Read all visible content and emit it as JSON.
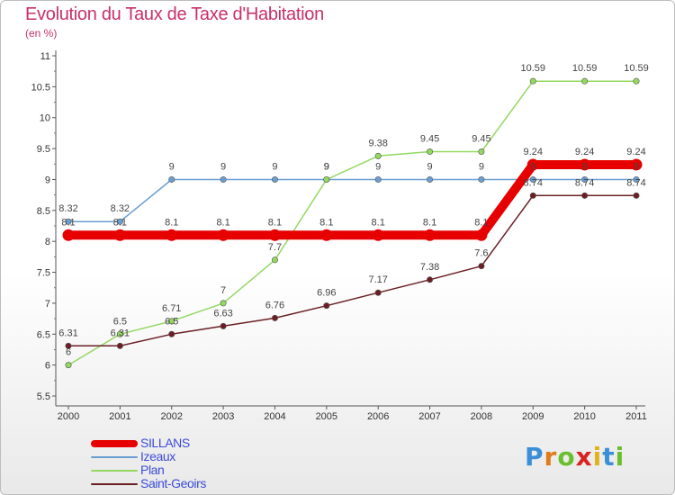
{
  "title": "Evolution du Taux de Taxe d'Habitation",
  "subtitle": "(en %)",
  "brand": {
    "letters": [
      "P",
      "r",
      "o",
      "x",
      "i",
      "t",
      "i"
    ],
    "colors": [
      "#3a8fd8",
      "#e07b1a",
      "#6bbf2e",
      "#d8231f",
      "#e0b31a",
      "#3a8fd8",
      "#6bbf2e"
    ]
  },
  "chart_data": {
    "type": "line",
    "title": "Evolution du Taux de Taxe d'Habitation",
    "ylabel": "(en %)",
    "xlabel": "",
    "x": [
      "2000",
      "2001",
      "2002",
      "2003",
      "2004",
      "2005",
      "2006",
      "2007",
      "2008",
      "2009",
      "2010",
      "2011"
    ],
    "ylim": [
      5.5,
      11
    ],
    "yticks": [
      "5.5",
      "6",
      "6.5",
      "7",
      "7.5",
      "8",
      "8.5",
      "9",
      "9.5",
      "10",
      "10.5",
      "11"
    ],
    "grid": false,
    "legend_position": "bottom-left",
    "series": [
      {
        "name": "SILLANS",
        "color": "#e60000",
        "emphasis": "thick",
        "values": [
          8.1,
          8.1,
          8.1,
          8.1,
          8.1,
          8.1,
          8.1,
          8.1,
          8.1,
          9.24,
          9.24,
          9.24
        ],
        "labels": [
          "8.1",
          "8.1",
          "8.1",
          "8.1",
          "8.1",
          "8.1",
          "8.1",
          "8.1",
          "8.1",
          "9.24",
          "9.24",
          "9.24"
        ]
      },
      {
        "name": "Izeaux",
        "color": "#6a9ed1",
        "emphasis": "thin",
        "values": [
          8.32,
          8.32,
          9,
          9,
          9,
          9,
          9,
          9,
          9,
          9,
          9,
          9
        ],
        "labels": [
          "8.32",
          "8.32",
          "9",
          "9",
          "9",
          "9",
          "9",
          "9",
          "9",
          "9",
          "9",
          "9"
        ]
      },
      {
        "name": "Plan",
        "color": "#93d860",
        "emphasis": "thin",
        "values": [
          6,
          6.5,
          6.71,
          7,
          7.7,
          9,
          9.38,
          9.45,
          9.45,
          10.59,
          10.59,
          10.59
        ],
        "labels": [
          "6",
          "6.5",
          "6.71",
          "7",
          "7.7",
          "9",
          "9.38",
          "9.45",
          "9.45",
          "10.59",
          "10.59",
          "10.59"
        ]
      },
      {
        "name": "Saint-Geoirs",
        "color": "#6b1f24",
        "emphasis": "thin",
        "values": [
          6.31,
          6.31,
          6.5,
          6.63,
          6.76,
          6.96,
          7.17,
          7.38,
          7.6,
          8.74,
          8.74,
          8.74
        ],
        "labels": [
          "6.31",
          "6.31",
          "6.5",
          "6.63",
          "6.76",
          "6.96",
          "7.17",
          "7.38",
          "7.6",
          "8.74",
          "8.74",
          "8.74"
        ]
      }
    ]
  }
}
